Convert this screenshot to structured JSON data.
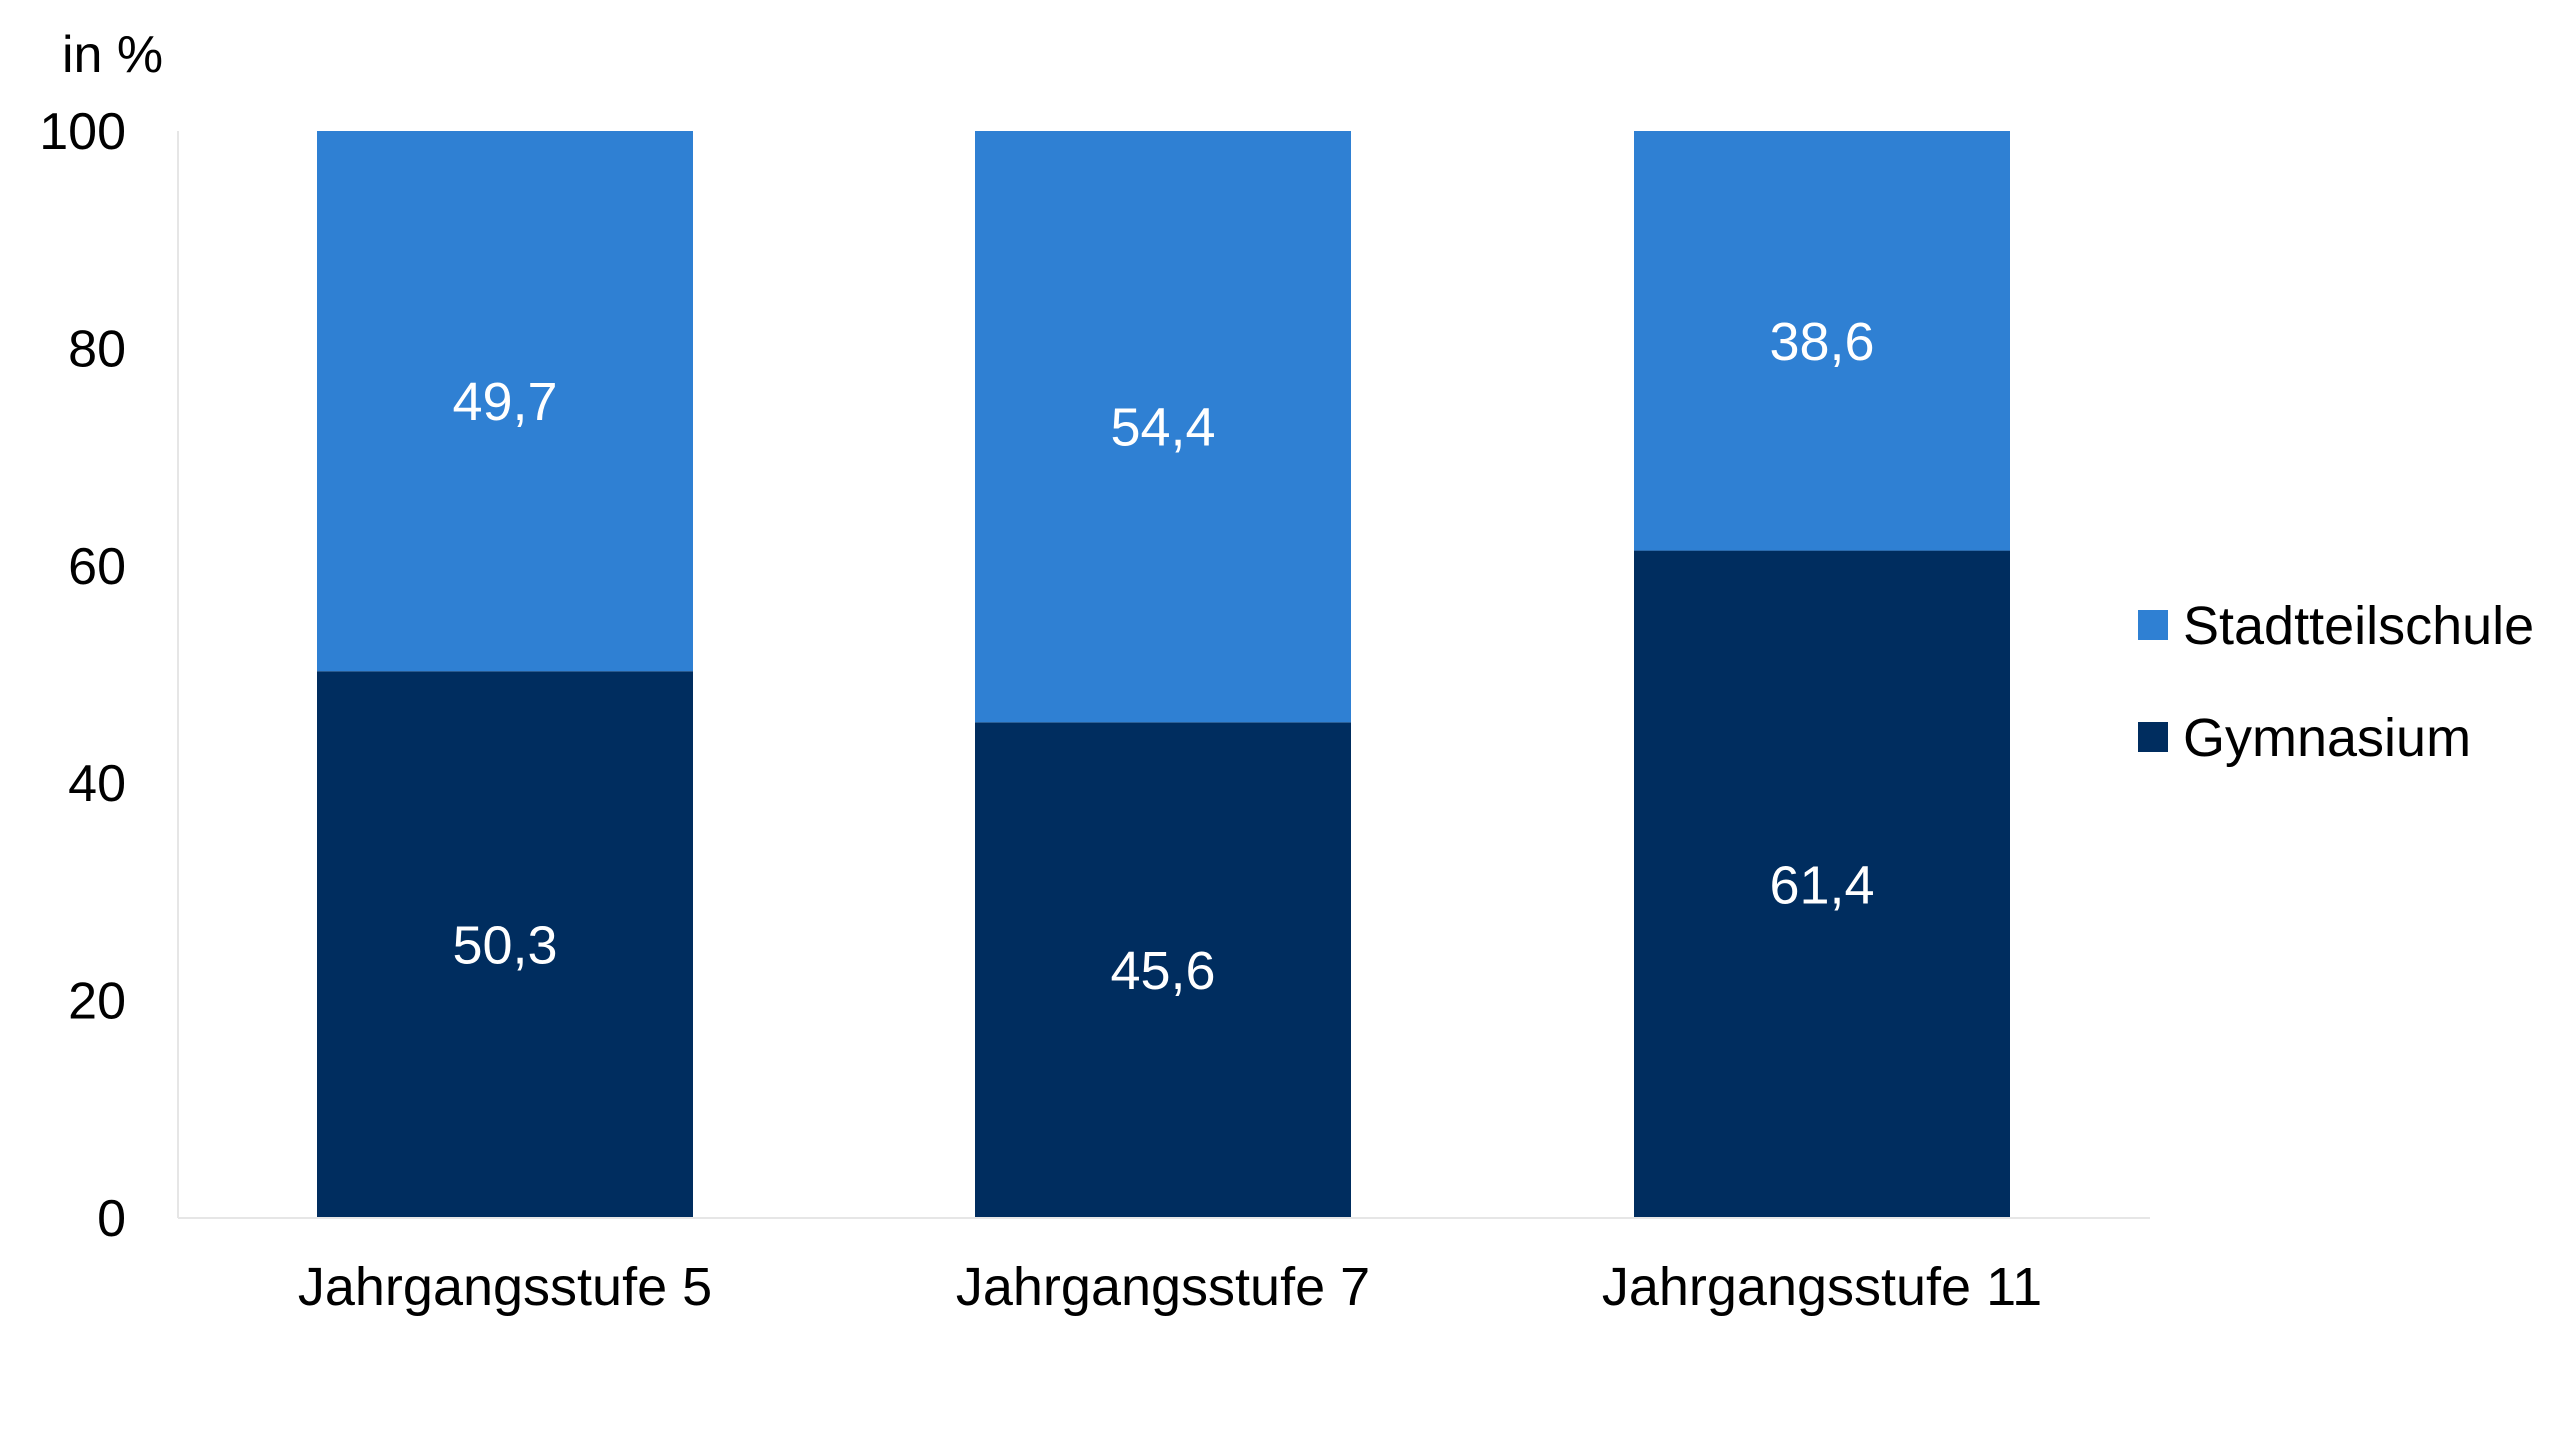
{
  "chart_data": {
    "type": "bar",
    "stacked": true,
    "ylabel": "in %",
    "ylim": [
      0,
      100
    ],
    "yticks": [
      "0",
      "20",
      "40",
      "60",
      "80",
      "100"
    ],
    "categories": [
      "Jahrgangsstufe 5",
      "Jahrgangsstufe 7",
      "Jahrgangsstufe 11"
    ],
    "series": [
      {
        "name": "Gymnasium",
        "values": [
          50.3,
          45.6,
          61.4
        ],
        "labels": [
          "50,3",
          "45,6",
          "61,4"
        ],
        "color": "#002d5f"
      },
      {
        "name": "Stadtteilschule",
        "values": [
          49.7,
          54.4,
          38.6
        ],
        "labels": [
          "49,7",
          "54,4",
          "38,6"
        ],
        "color": "#2f80d3"
      }
    ],
    "legend": {
      "position": "right",
      "order": [
        "Stadtteilschule",
        "Gymnasium"
      ]
    },
    "grid": false,
    "axis_color": "#e6e6e6"
  }
}
